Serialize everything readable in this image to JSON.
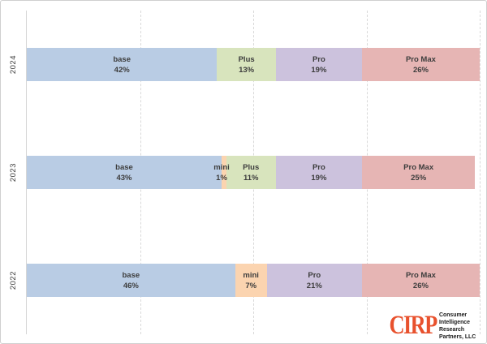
{
  "colors": {
    "base": "#b9cce4",
    "mini": "#fbd4b0",
    "plus": "#d8e4bd",
    "pro": "#ccc2dd",
    "pro_max": "#e6b5b4",
    "gridline": "#d9d9d9",
    "bar_label_text": "#3d3d3d",
    "logo_orange": "#e8512d"
  },
  "y_axis": {
    "labels": [
      "2024",
      "2023",
      "2022"
    ]
  },
  "rows": [
    {
      "year": "2024",
      "segments": [
        {
          "label": "base",
          "value": "42%",
          "pct": 42
        },
        {
          "label": "Plus",
          "value": "13%",
          "pct": 13
        },
        {
          "label": "Pro",
          "value": "19%",
          "pct": 19
        },
        {
          "label": "Pro Max",
          "value": "26%",
          "pct": 26
        }
      ]
    },
    {
      "year": "2023",
      "segments": [
        {
          "label": "base",
          "value": "43%",
          "pct": 43
        },
        {
          "label": "mini",
          "value": "1%",
          "pct": 1
        },
        {
          "label": "Plus",
          "value": "11%",
          "pct": 11
        },
        {
          "label": "Pro",
          "value": "19%",
          "pct": 19
        },
        {
          "label": "Pro Max",
          "value": "25%",
          "pct": 25
        }
      ]
    },
    {
      "year": "2022",
      "segments": [
        {
          "label": "base",
          "value": "46%",
          "pct": 46
        },
        {
          "label": "mini",
          "value": "7%",
          "pct": 7
        },
        {
          "label": "Pro",
          "value": "21%",
          "pct": 21
        },
        {
          "label": "Pro Max",
          "value": "26%",
          "pct": 26
        }
      ]
    }
  ],
  "logo": {
    "acronym": "CIRP",
    "lines": [
      "Consumer",
      "Intelligence",
      "Research",
      "Partners, LLC"
    ]
  },
  "chart_data": {
    "type": "bar",
    "orientation": "horizontal",
    "stacked": true,
    "categories": [
      "2024",
      "2023",
      "2022"
    ],
    "series": [
      {
        "name": "base",
        "values": [
          42,
          43,
          46
        ],
        "color": "#b9cce4"
      },
      {
        "name": "mini",
        "values": [
          0,
          1,
          7
        ],
        "color": "#fbd4b0"
      },
      {
        "name": "Plus",
        "values": [
          13,
          11,
          0
        ],
        "color": "#d8e4bd"
      },
      {
        "name": "Pro",
        "values": [
          19,
          19,
          21
        ],
        "color": "#ccc2dd"
      },
      {
        "name": "Pro Max",
        "values": [
          26,
          25,
          26
        ],
        "color": "#e6b5b4"
      }
    ],
    "value_format": "percent",
    "xlim": [
      0,
      100
    ],
    "gridlines_pct": [
      25,
      50,
      75,
      100
    ],
    "gridline_style": "dashed",
    "legend": "none (labels inside bar segments)",
    "title": "",
    "xlabel": "",
    "ylabel": ""
  }
}
